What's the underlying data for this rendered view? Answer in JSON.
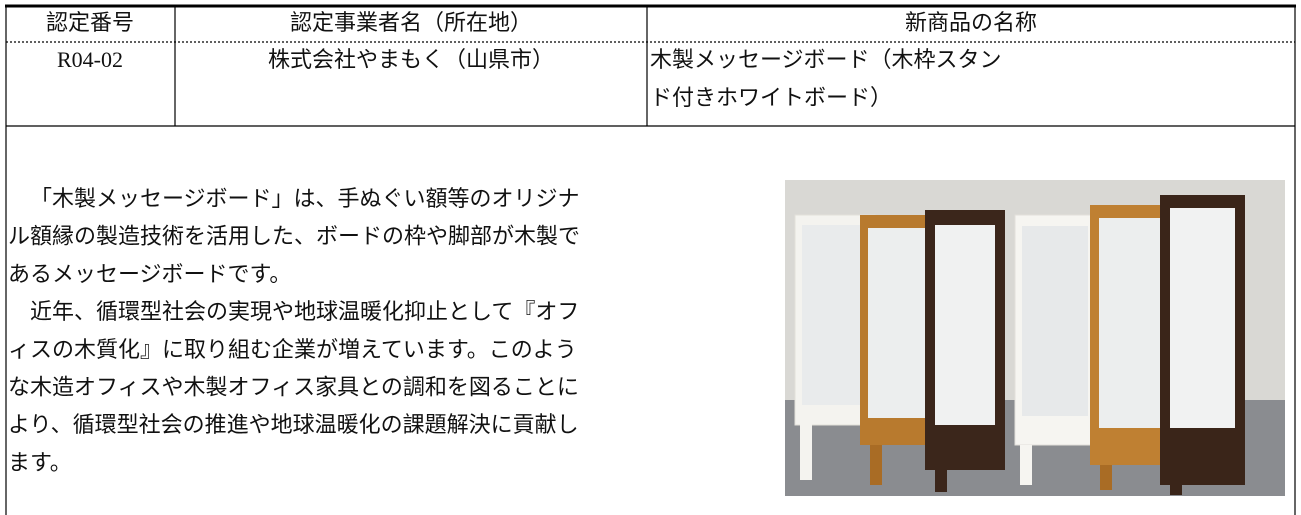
{
  "table": {
    "header": [
      "認定番号",
      "認定事業者名（所在地）",
      "新商品の名称"
    ],
    "rows": [
      {
        "number": "R04-02",
        "company": "株式会社やまもく（山県市）",
        "product": [
          "木製メッセージボード（木枠スタン",
          "ド付きホワイトボード）"
        ]
      }
    ]
  },
  "description": {
    "lines": [
      "「木製メッセージボード」は、手ぬぐい額等のオリジナ",
      "ル額縁の製造技術を活用した、ボードの枠や脚部が木製で",
      "あるメッセージボードです。",
      "近年、循環型社会の実現や地球温暖化抑止として『オフ",
      "ィスの木質化』に取り組む企業が増えています。このよう",
      "な木造オフィスや木製オフィス家具との調和を図ることに",
      "より、循環型社会の推進や地球温暖化の課題解決に貢献し",
      "ます。"
    ]
  }
}
